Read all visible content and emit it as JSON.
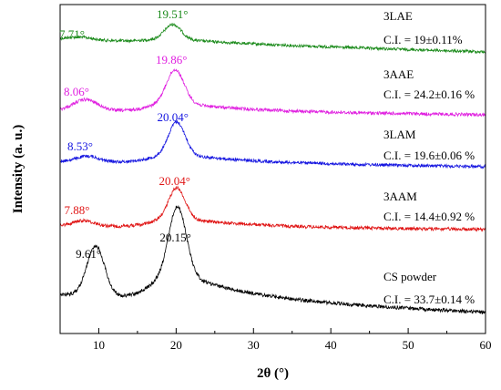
{
  "chart_data": {
    "type": "line",
    "title": "",
    "xlabel": "2θ (°)",
    "ylabel": "Intensity (a. u.)",
    "xlim": [
      5,
      60
    ],
    "x_ticks": [
      10,
      20,
      30,
      40,
      50,
      60
    ],
    "y_ticks_visible": false,
    "grid": false,
    "legend": "none",
    "series": [
      {
        "name": "3LAE",
        "ci": "C.I. = 19±0.11%",
        "color": "#1a8a1a",
        "peaks": [
          {
            "x": 7.71,
            "label": "7.71°"
          },
          {
            "x": 19.51,
            "label": "19.51°"
          }
        ]
      },
      {
        "name": "3AAE",
        "ci": "C.I. = 24.2±0.16 %",
        "color": "#e020e0",
        "peaks": [
          {
            "x": 8.06,
            "label": "8.06°"
          },
          {
            "x": 19.86,
            "label": "19.86°"
          }
        ]
      },
      {
        "name": "3LAM",
        "ci": "C.I. = 19.6±0.06 %",
        "color": "#1515e0",
        "peaks": [
          {
            "x": 8.53,
            "label": "8.53°"
          },
          {
            "x": 20.04,
            "label": "20.04°"
          }
        ]
      },
      {
        "name": "3AAM",
        "ci": "C.I. = 14.4±0.92 %",
        "color": "#e01515",
        "peaks": [
          {
            "x": 7.88,
            "label": "7.88°"
          },
          {
            "x": 20.04,
            "label": "20.04°"
          }
        ]
      },
      {
        "name": "CS powder",
        "ci": "C.I. = 33.7±0.14 %",
        "color": "#000000",
        "peaks": [
          {
            "x": 9.61,
            "label": "9.61°"
          },
          {
            "x": 20.15,
            "label": "20.15°"
          }
        ]
      }
    ]
  }
}
